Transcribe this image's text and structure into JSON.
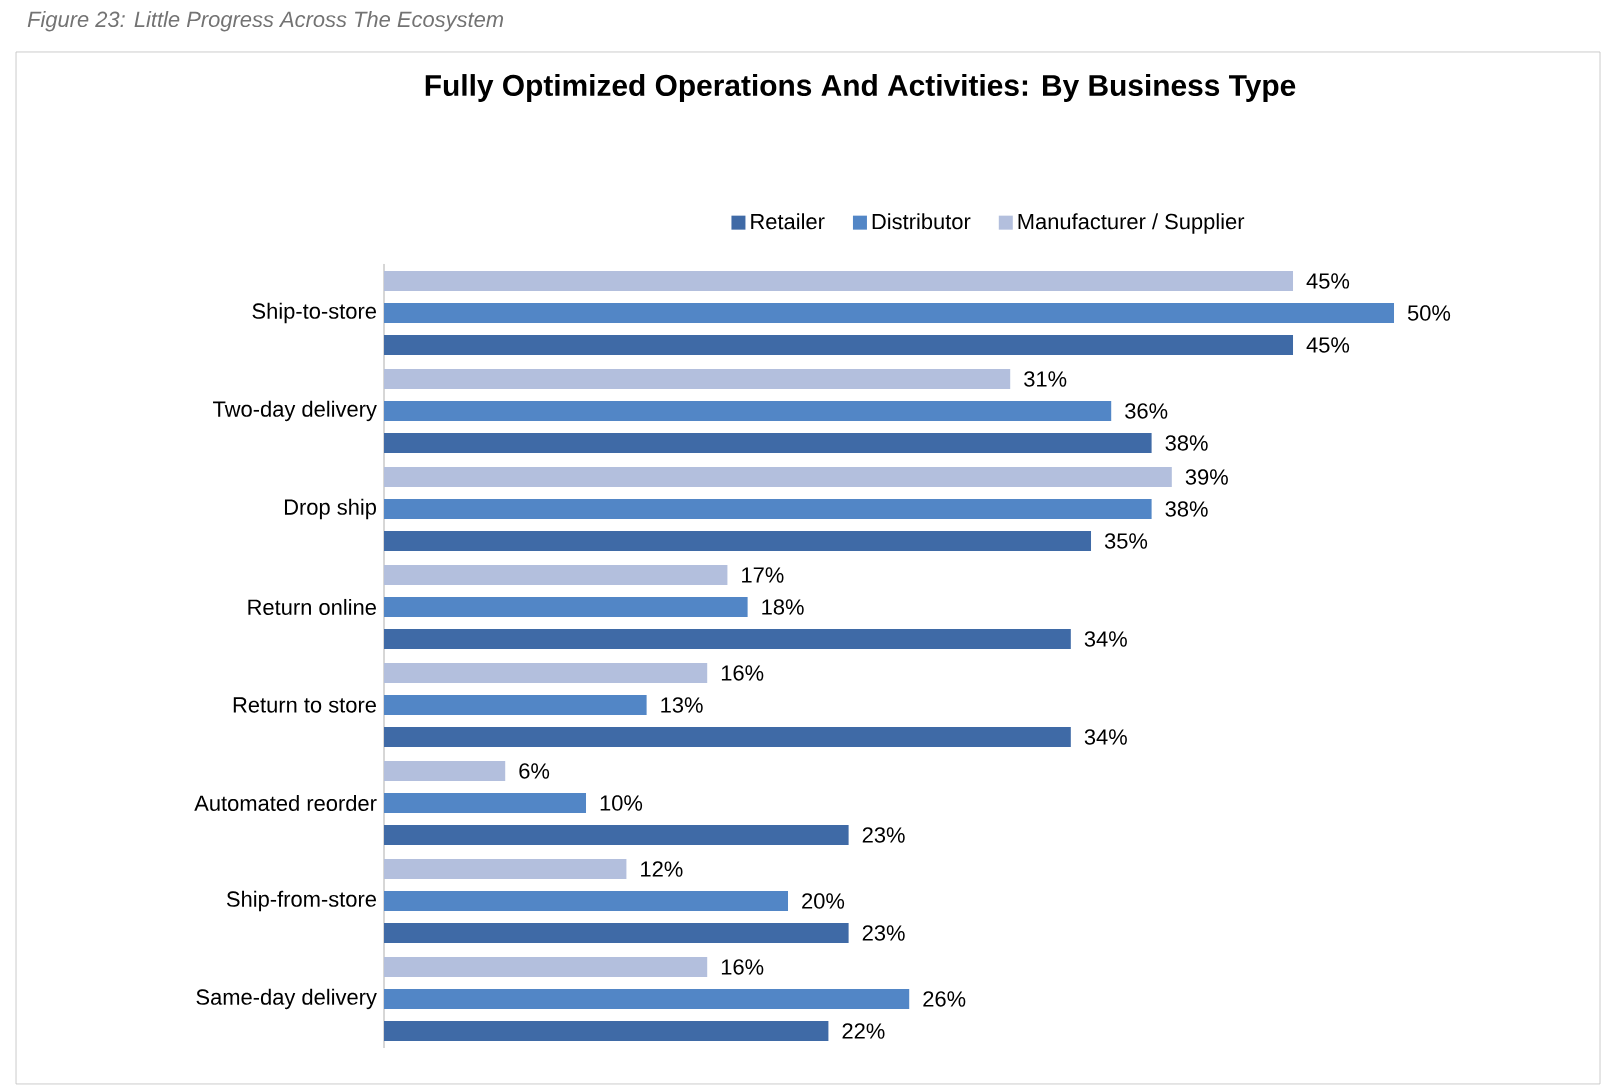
{
  "chart_data": {
    "type": "bar",
    "orientation": "horizontal",
    "title": "Fully Optimized Operations And Activities: By Business Type",
    "annotations": [
      "Figure 23: Little Progress Across The Ecosystem"
    ],
    "categories": [
      "Ship-to-store",
      "Two-day delivery",
      "Drop ship",
      "Return online",
      "Return to store",
      "Automated reorder",
      "Ship-from-store",
      "Same-day delivery"
    ],
    "series": [
      {
        "name": "Retailer",
        "color": "#3f6aa6",
        "values": [
          45,
          38,
          35,
          34,
          34,
          23,
          23,
          22
        ],
        "value_labels": [
          "45%",
          "38%",
          "35%",
          "34%",
          "34%",
          "23%",
          "23%",
          "22%"
        ]
      },
      {
        "name": "Distributor",
        "color": "#5286c6",
        "values": [
          50,
          36,
          38,
          18,
          13,
          10,
          20,
          26
        ],
        "value_labels": [
          "50%",
          "36%",
          "38%",
          "18%",
          "13%",
          "10%",
          "20%",
          "26%"
        ]
      },
      {
        "name": "Manufacturer / Supplier",
        "color": "#b3bfdd",
        "values": [
          45,
          31,
          39,
          17,
          16,
          6,
          12,
          16
        ],
        "value_labels": [
          "45%",
          "31%",
          "39%",
          "17%",
          "16%",
          "6%",
          "12%",
          "16%"
        ]
      }
    ],
    "xlim": [
      0,
      60
    ],
    "tick_labels": "y",
    "legend": "top",
    "grid": false
  }
}
